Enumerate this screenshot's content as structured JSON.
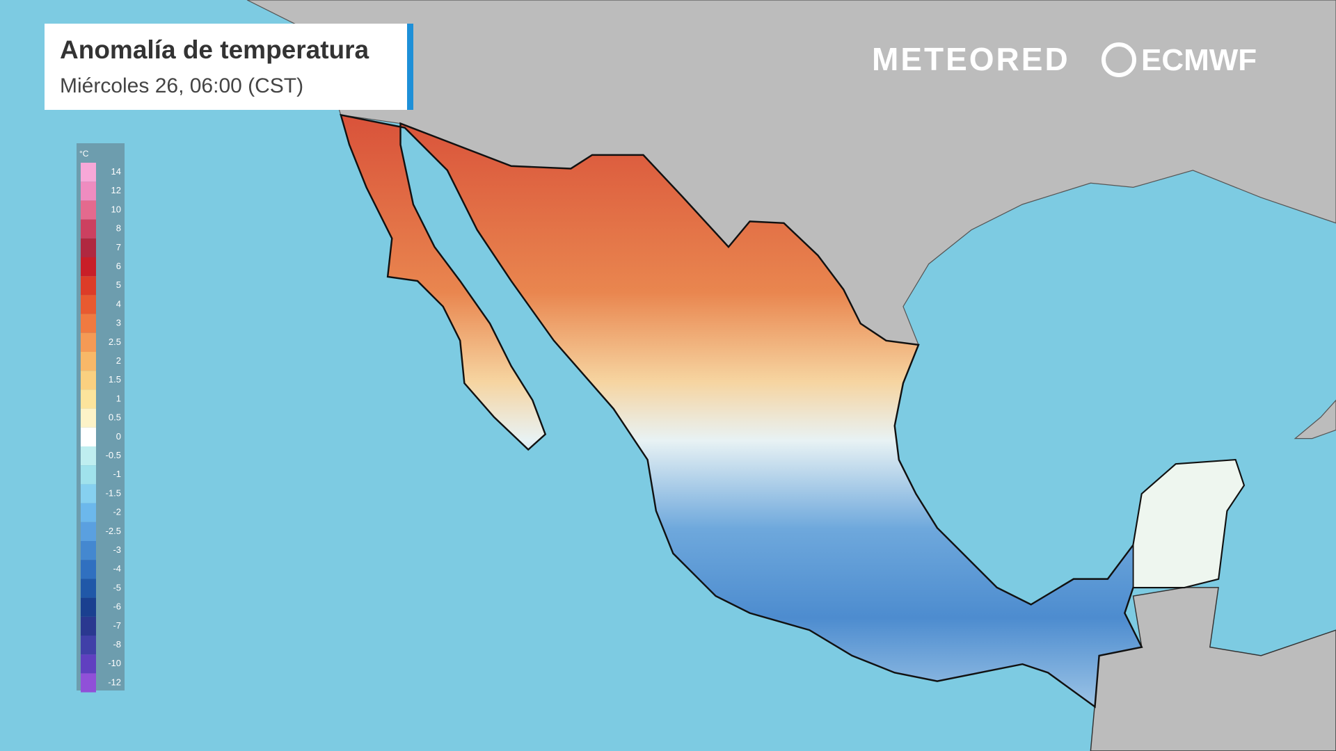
{
  "header": {
    "title": "Anomalía de temperatura",
    "subtitle": "Miércoles 26, 06:00 (CST)"
  },
  "logos": {
    "meteored": "METEORED",
    "ecmwf": "ECMWF"
  },
  "legend": {
    "unit": "°C",
    "values": [
      14,
      12,
      10,
      8,
      7,
      6,
      5,
      4,
      3,
      2.5,
      2,
      1.5,
      1,
      0.5,
      0,
      -0.5,
      -1,
      -1.5,
      -2,
      -2.5,
      -3,
      -4,
      -5,
      -6,
      -7,
      -8,
      -10,
      -12
    ],
    "colors": [
      "#f7a8d8",
      "#ef8cc0",
      "#e46a8e",
      "#cc4060",
      "#b02840",
      "#c81e28",
      "#dc3c28",
      "#e85a30",
      "#f07a40",
      "#f59a55",
      "#f8b868",
      "#fad080",
      "#fce49c",
      "#fdf3c8",
      "#ffffff",
      "#bfeef0",
      "#a0e2ec",
      "#86d0f0",
      "#6cb8ec",
      "#5aa0e0",
      "#4488d0",
      "#3070c0",
      "#2058a8",
      "#1a4090",
      "#2a3890",
      "#4040a8",
      "#6040c0",
      "#9050d8"
    ]
  }
}
